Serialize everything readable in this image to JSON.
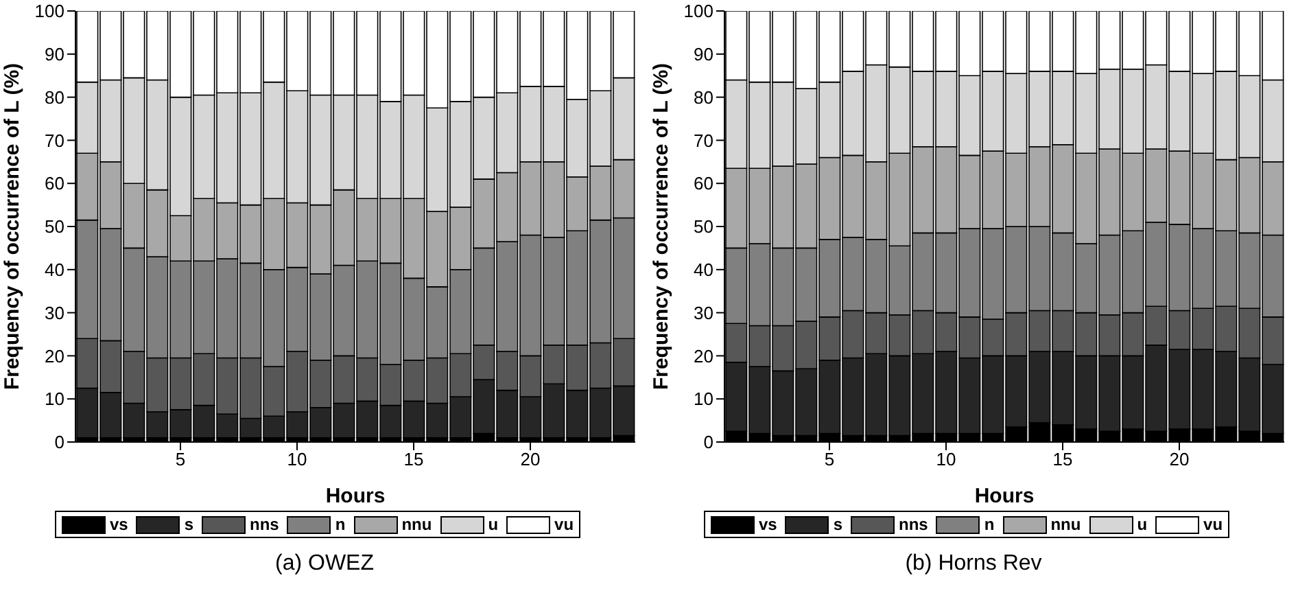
{
  "chart_data": [
    {
      "type": "bar",
      "title": "(a) OWEZ",
      "xlabel": "Hours",
      "ylabel": "Frequency of occurrence of L (%)",
      "stacked": true,
      "legend": "bottom",
      "x": [
        1,
        2,
        3,
        4,
        5,
        6,
        7,
        8,
        9,
        10,
        11,
        12,
        13,
        14,
        15,
        16,
        17,
        18,
        19,
        20,
        21,
        22,
        23,
        24
      ],
      "xlim": [
        0.5,
        24.5
      ],
      "xticks": [
        5,
        10,
        15,
        20
      ],
      "ylim": [
        0,
        100
      ],
      "yticks": [
        0,
        10,
        20,
        30,
        40,
        50,
        60,
        70,
        80,
        90,
        100
      ],
      "series": [
        {
          "name": "vs",
          "color": "#000000",
          "values": [
            1,
            1,
            1,
            1,
            1,
            1,
            1,
            1,
            1,
            1,
            1,
            1,
            1,
            1,
            1,
            1,
            1,
            2,
            1,
            1,
            1,
            1,
            1,
            1.5
          ]
        },
        {
          "name": "s",
          "color": "#262626",
          "values": [
            11.5,
            10.5,
            8,
            6,
            6.5,
            7.5,
            5.5,
            4.5,
            5,
            6,
            7,
            8,
            8.5,
            7.5,
            8.5,
            8,
            9.5,
            12.5,
            11,
            9.5,
            12.5,
            11,
            11.5,
            11.5
          ]
        },
        {
          "name": "nns",
          "color": "#575757",
          "values": [
            11.5,
            12,
            12,
            12.5,
            12,
            12,
            13,
            14,
            11.5,
            14,
            11,
            11,
            10,
            9.5,
            9.5,
            10.5,
            10,
            8,
            9,
            9.5,
            9,
            10.5,
            10.5,
            11
          ]
        },
        {
          "name": "n",
          "color": "#808080",
          "values": [
            27.5,
            26,
            24,
            23.5,
            22.5,
            21.5,
            23,
            22,
            22.5,
            19.5,
            20,
            21,
            22.5,
            23.5,
            19,
            16.5,
            19.5,
            22.5,
            25.5,
            28,
            25,
            26.5,
            28.5,
            28
          ]
        },
        {
          "name": "nnu",
          "color": "#a8a8a8",
          "values": [
            15.5,
            15.5,
            15,
            15.5,
            10.5,
            14.5,
            13,
            13.5,
            16.5,
            15,
            16,
            17.5,
            14.5,
            15,
            18.5,
            17.5,
            14.5,
            16,
            16,
            17,
            17.5,
            12.5,
            12.5,
            13.5
          ]
        },
        {
          "name": "u",
          "color": "#d6d6d6",
          "values": [
            16.5,
            19,
            24.5,
            25.5,
            27.5,
            24,
            25.5,
            26,
            27,
            26,
            25.5,
            22,
            24,
            22.5,
            24,
            24,
            24.5,
            19,
            18.5,
            17.5,
            17.5,
            18,
            17.5,
            19
          ]
        },
        {
          "name": "vu",
          "color": "#ffffff",
          "values": [
            16.5,
            16,
            15.5,
            16,
            20,
            19.5,
            19,
            19,
            16.5,
            18.5,
            19.5,
            19.5,
            19.5,
            21,
            19.5,
            22.5,
            21,
            20,
            19,
            17.5,
            17.5,
            20.5,
            18.5,
            15.5
          ]
        }
      ]
    },
    {
      "type": "bar",
      "title": "(b) Horns Rev",
      "xlabel": "Hours",
      "ylabel": "Frequency of occurrence of L (%)",
      "stacked": true,
      "legend": "bottom",
      "x": [
        1,
        2,
        3,
        4,
        5,
        6,
        7,
        8,
        9,
        10,
        11,
        12,
        13,
        14,
        15,
        16,
        17,
        18,
        19,
        20,
        21,
        22,
        23,
        24
      ],
      "xlim": [
        0.5,
        24.5
      ],
      "xticks": [
        5,
        10,
        15,
        20
      ],
      "ylim": [
        0,
        100
      ],
      "yticks": [
        0,
        10,
        20,
        30,
        40,
        50,
        60,
        70,
        80,
        90,
        100
      ],
      "series": [
        {
          "name": "vs",
          "color": "#000000",
          "values": [
            2.5,
            2,
            1.5,
            1.5,
            2,
            1.5,
            1.5,
            1.5,
            2,
            2,
            2,
            2,
            3.5,
            4.5,
            4,
            3,
            2.5,
            3,
            2.5,
            3,
            3,
            3.5,
            2.5,
            2
          ]
        },
        {
          "name": "s",
          "color": "#262626",
          "values": [
            16,
            15.5,
            15,
            15.5,
            17,
            18,
            19,
            18.5,
            18.5,
            19,
            17.5,
            18,
            16.5,
            16.5,
            17,
            17,
            17.5,
            17,
            20,
            18.5,
            18.5,
            17.5,
            17,
            16
          ]
        },
        {
          "name": "nns",
          "color": "#575757",
          "values": [
            9,
            9.5,
            10.5,
            11,
            10,
            11,
            9.5,
            9.5,
            10,
            9,
            9.5,
            8.5,
            10,
            9.5,
            9.5,
            10,
            9.5,
            10,
            9,
            9,
            9.5,
            10.5,
            11.5,
            11
          ]
        },
        {
          "name": "n",
          "color": "#808080",
          "values": [
            17.5,
            19,
            18,
            17,
            18,
            17,
            17,
            16,
            18,
            18.5,
            20.5,
            21,
            20,
            19.5,
            18,
            16,
            18.5,
            19,
            19.5,
            20,
            18.5,
            17.5,
            17.5,
            19
          ]
        },
        {
          "name": "nnu",
          "color": "#a8a8a8",
          "values": [
            18.5,
            17.5,
            19,
            19.5,
            19,
            19,
            18,
            21.5,
            20,
            20,
            17,
            18,
            17,
            18.5,
            20.5,
            21,
            20,
            18,
            17,
            17,
            17.5,
            16.5,
            17.5,
            17
          ]
        },
        {
          "name": "u",
          "color": "#d6d6d6",
          "values": [
            20.5,
            20,
            19.5,
            17.5,
            17.5,
            19.5,
            22.5,
            20,
            17.5,
            17.5,
            18.5,
            18.5,
            18.5,
            17.5,
            17,
            18.5,
            18.5,
            19.5,
            19.5,
            18.5,
            18.5,
            20.5,
            19,
            19
          ]
        },
        {
          "name": "vu",
          "color": "#ffffff",
          "values": [
            16,
            16.5,
            16.5,
            18,
            16.5,
            14,
            12.5,
            13,
            14,
            14,
            15,
            14,
            14.5,
            14,
            14,
            14.5,
            13.5,
            13.5,
            12.5,
            14,
            14.5,
            14,
            15,
            16
          ]
        }
      ]
    }
  ]
}
